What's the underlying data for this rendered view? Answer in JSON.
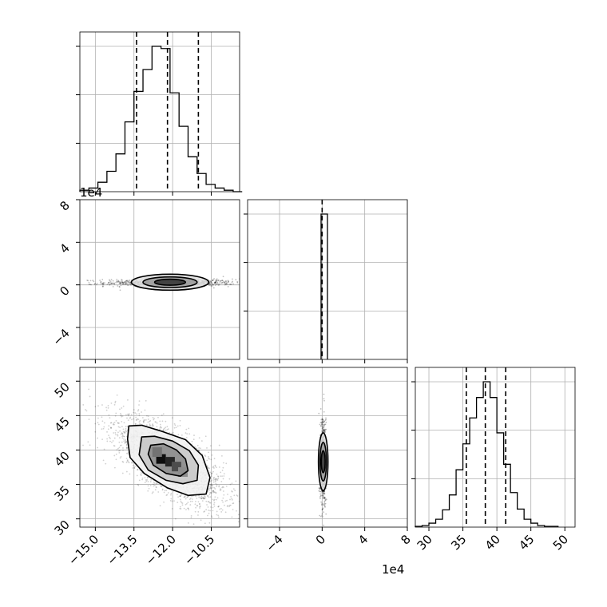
{
  "chart_data": {
    "type": "corner",
    "multipliers": {
      "row2_yaxis": "1e4",
      "col2_xaxis": "1e4"
    },
    "columns": [
      {
        "xlim": [
          -15.6,
          -9.4
        ],
        "ticks": [
          -15.0,
          -13.5,
          -12.0,
          -10.5
        ],
        "tick_labels": [
          "−15.0",
          "−13.5",
          "−12.0",
          "−10.5"
        ]
      },
      {
        "xlim": [
          -7.0,
          8.0
        ],
        "ticks": [
          -4,
          0,
          4,
          8
        ],
        "tick_labels": [
          "−4",
          "0",
          "4",
          "8"
        ]
      },
      {
        "xlim": [
          28.0,
          51.5
        ],
        "ticks": [
          30,
          35,
          40,
          45,
          50
        ],
        "tick_labels": [
          "30",
          "35",
          "40",
          "45",
          "50"
        ]
      }
    ],
    "rows": [
      {
        "ylim": [
          -7.0,
          8.0
        ],
        "ticks": [
          -4,
          0,
          4,
          8
        ],
        "tick_labels": [
          "−4",
          "0",
          "4",
          "8"
        ]
      },
      {
        "ylim": [
          28.8,
          52.0
        ],
        "ticks": [
          30,
          35,
          40,
          45,
          50
        ],
        "tick_labels": [
          "30",
          "35",
          "40",
          "45",
          "50"
        ]
      }
    ],
    "histograms": [
      {
        "param": 0,
        "bins": [
          -15.6,
          -15.25,
          -14.9,
          -14.55,
          -14.2,
          -13.85,
          -13.5,
          -13.15,
          -12.8,
          -12.45,
          -12.1,
          -11.75,
          -11.4,
          -11.05,
          -10.7,
          -10.35,
          -10.0,
          -9.65,
          -9.3
        ],
        "counts": [
          2,
          5,
          13,
          28,
          52,
          96,
          138,
          168,
          200,
          197,
          136,
          90,
          48,
          25,
          10,
          5,
          2,
          0
        ],
        "quantiles": [
          -13.4,
          -12.2,
          -11.0
        ]
      },
      {
        "param": 1,
        "bins": [
          -0.1,
          0.5
        ],
        "counts": [
          1
        ],
        "quantiles": [
          0.0
        ]
      },
      {
        "param": 2,
        "bins": [
          28.0,
          29.0,
          30.0,
          31.0,
          32.0,
          33.0,
          34.0,
          35.0,
          36.0,
          37.0,
          38.0,
          39.0,
          40.0,
          41.0,
          42.0,
          43.0,
          44.0,
          45.0,
          46.0,
          47.0,
          48.0,
          49.0
        ],
        "counts": [
          1,
          2,
          5,
          10,
          22,
          41,
          73,
          106,
          139,
          165,
          185,
          165,
          120,
          80,
          44,
          23,
          10,
          5,
          2,
          1,
          1
        ],
        "quantiles": [
          35.5,
          38.3,
          41.3
        ]
      }
    ],
    "panels_2d": [
      {
        "x_param": 0,
        "y_param": 1,
        "center": [
          -12.1,
          0.2
        ],
        "scatter_spread": [
          2.6,
          0.15
        ],
        "contours": [
          {
            "cx": -12.1,
            "cy": 0.25,
            "rx": 1.5,
            "ry": 0.75
          },
          {
            "cx": -12.1,
            "cy": 0.25,
            "rx": 1.05,
            "ry": 0.5
          },
          {
            "cx": -12.1,
            "cy": 0.25,
            "rx": 0.6,
            "ry": 0.28
          }
        ]
      },
      {
        "x_param": 0,
        "y_param": 2,
        "center": [
          -12.1,
          38.3
        ],
        "correlation": -0.7,
        "contours": [
          {
            "points": [
              [
                -13.7,
                43.5
              ],
              [
                -13.2,
                43.6
              ],
              [
                -12.4,
                42.7
              ],
              [
                -11.5,
                41.5
              ],
              [
                -10.85,
                39.2
              ],
              [
                -10.55,
                36.0
              ],
              [
                -10.7,
                33.6
              ],
              [
                -11.4,
                33.4
              ],
              [
                -12.2,
                34.5
              ],
              [
                -13.1,
                36.6
              ],
              [
                -13.65,
                38.9
              ],
              [
                -13.75,
                41.6
              ]
            ]
          },
          {
            "points": [
              [
                -13.2,
                41.9
              ],
              [
                -12.7,
                42.0
              ],
              [
                -12.0,
                41.3
              ],
              [
                -11.35,
                39.9
              ],
              [
                -11.0,
                37.8
              ],
              [
                -11.05,
                35.6
              ],
              [
                -11.6,
                35.1
              ],
              [
                -12.25,
                35.6
              ],
              [
                -12.95,
                37.1
              ],
              [
                -13.3,
                39.3
              ]
            ]
          },
          {
            "points": [
              [
                -12.85,
                40.7
              ],
              [
                -12.35,
                40.9
              ],
              [
                -11.85,
                40.0
              ],
              [
                -11.5,
                38.7
              ],
              [
                -11.4,
                37.0
              ],
              [
                -11.7,
                36.2
              ],
              [
                -12.25,
                36.6
              ],
              [
                -12.75,
                37.8
              ],
              [
                -12.95,
                39.4
              ]
            ]
          }
        ],
        "density_cells": [
          {
            "x": -12.45,
            "y": 38.7,
            "level": 0.95
          },
          {
            "x": -12.1,
            "y": 38.3,
            "level": 0.85
          },
          {
            "x": -11.85,
            "y": 37.6,
            "level": 0.7
          },
          {
            "x": -12.6,
            "y": 39.7,
            "level": 0.55
          },
          {
            "x": -11.6,
            "y": 36.8,
            "level": 0.45
          }
        ]
      },
      {
        "x_param": 1,
        "y_param": 2,
        "center": [
          0.1,
          38.3
        ],
        "contours": [
          {
            "cx": 0.1,
            "cy": 38.3,
            "rx": 0.45,
            "ry": 4.2
          },
          {
            "cx": 0.1,
            "cy": 38.3,
            "rx": 0.3,
            "ry": 2.8
          },
          {
            "cx": 0.1,
            "cy": 38.3,
            "rx": 0.18,
            "ry": 1.6
          }
        ]
      }
    ]
  }
}
